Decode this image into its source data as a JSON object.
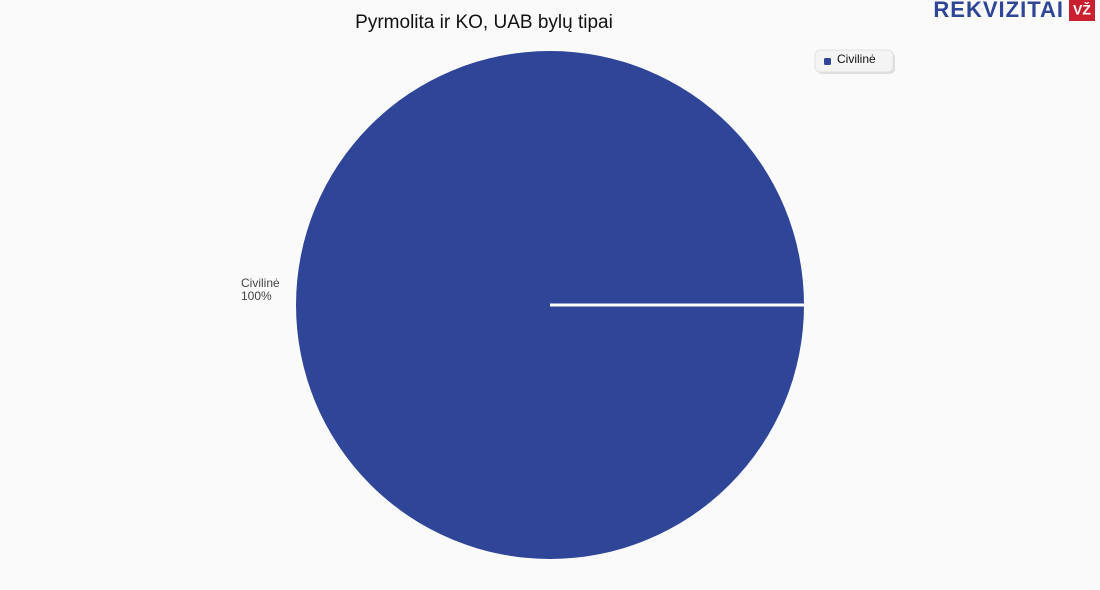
{
  "chart_data": {
    "type": "pie",
    "title": "Pyrmolita ir KO, UAB bylų tipai",
    "categories": [
      "Civilinė"
    ],
    "values": [
      100
    ],
    "value_labels": [
      "100%"
    ],
    "colors": [
      "#2e4598"
    ],
    "legend": "top-right"
  },
  "logo": {
    "text": "REKVIZITAI",
    "badge": "VŽ"
  }
}
